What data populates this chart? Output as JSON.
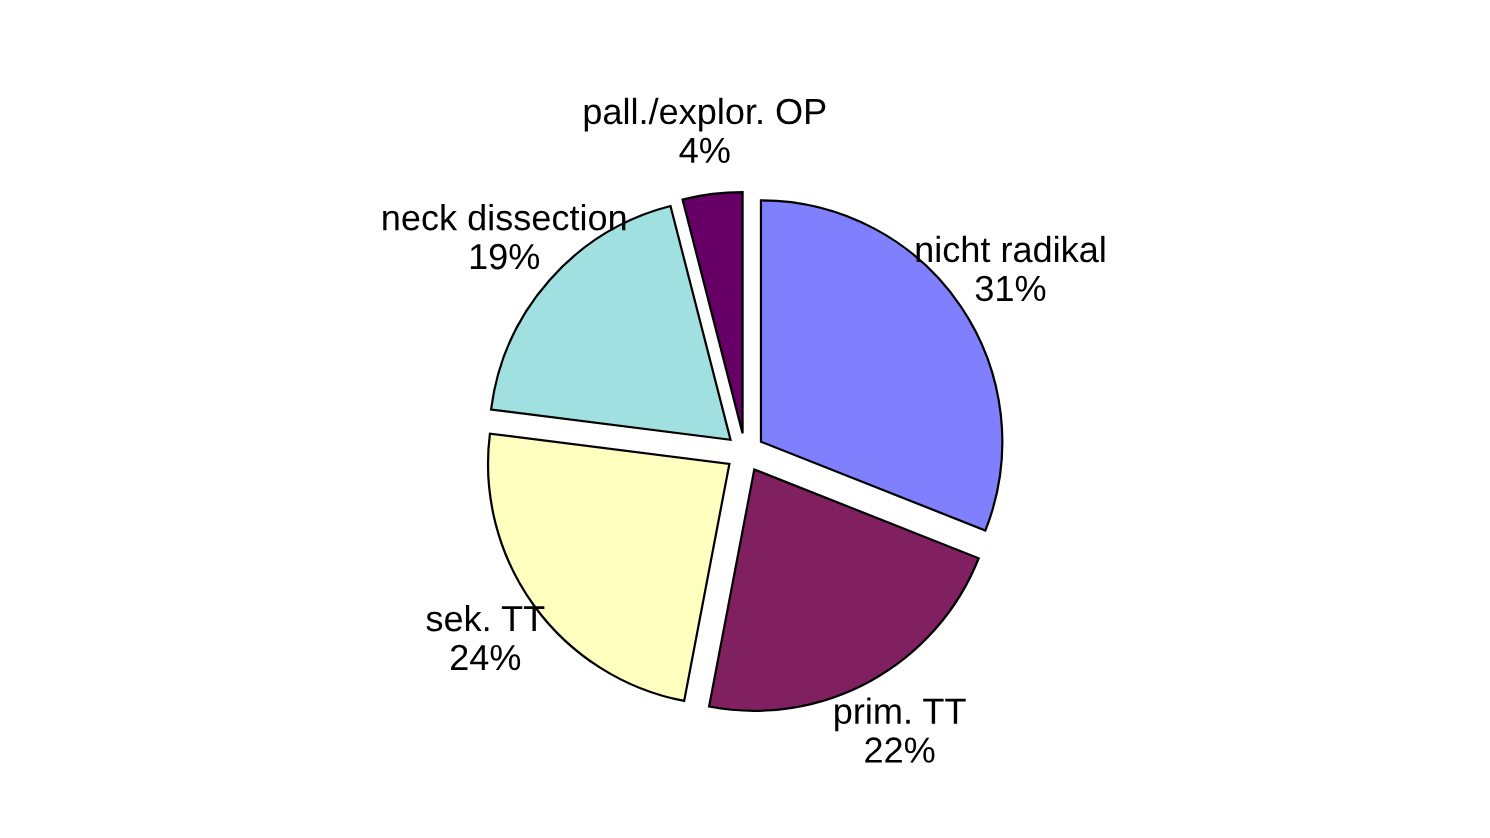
{
  "chart_data": {
    "type": "pie",
    "categories": [
      "nicht radikal",
      "prim. TT",
      "sek. TT",
      "neck dissection",
      "pall./explor. OP"
    ],
    "values": [
      31,
      22,
      24,
      19,
      4
    ],
    "value_labels": [
      "31%",
      "22%",
      "24%",
      "19%",
      "4%"
    ],
    "colors": [
      "#8080ff",
      "#802060",
      "#ffffc0",
      "#a0e0e0",
      "#660066"
    ],
    "legend": false
  }
}
